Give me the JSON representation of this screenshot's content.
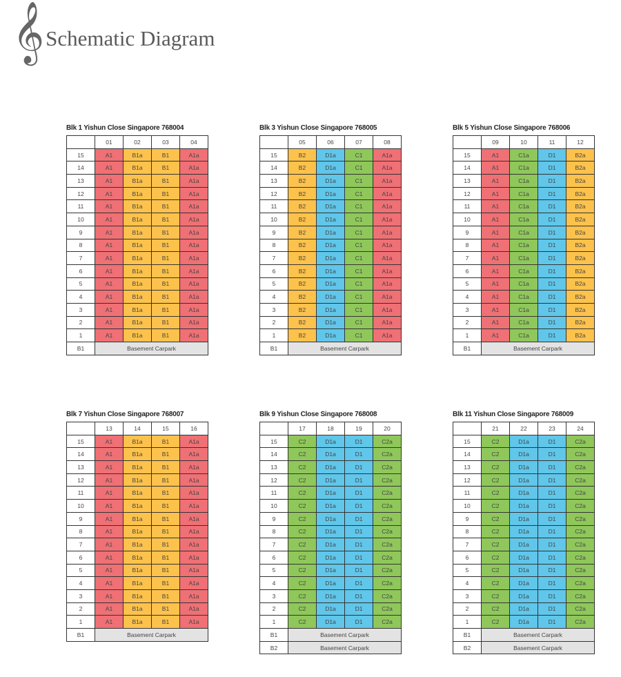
{
  "header": {
    "title": "Schematic Diagram",
    "logo_icon": "treble-clef-icon"
  },
  "colors": {
    "A": "#ef7075",
    "B": "#fcc24c",
    "C": "#8fc75b",
    "D": "#60c6ea",
    "basement": "#e3e3e3"
  },
  "floors": [
    "15",
    "14",
    "13",
    "12",
    "11",
    "10",
    "9",
    "8",
    "7",
    "6",
    "5",
    "4",
    "3",
    "2",
    "1"
  ],
  "blocks": [
    {
      "title": "Blk 1 Yishun Close Singapore 768004",
      "units": [
        "01",
        "02",
        "03",
        "04"
      ],
      "types": [
        "A1",
        "B1a",
        "B1",
        "A1a"
      ],
      "basements": [
        {
          "level": "B1",
          "label": "Basement Carpark"
        }
      ]
    },
    {
      "title": "Blk 3 Yishun Close Singapore 768005",
      "units": [
        "05",
        "06",
        "07",
        "08"
      ],
      "types": [
        "B2",
        "D1a",
        "C1",
        "A1a"
      ],
      "basements": [
        {
          "level": "B1",
          "label": "Basement Carpark"
        }
      ]
    },
    {
      "title": "Blk 5 Yishun Close Singapore 768006",
      "units": [
        "09",
        "10",
        "11",
        "12"
      ],
      "types": [
        "A1",
        "C1a",
        "D1",
        "B2a"
      ],
      "basements": [
        {
          "level": "B1",
          "label": "Basement Carpark"
        }
      ]
    },
    {
      "title": "Blk 7 Yishun Close Singapore 768007",
      "units": [
        "13",
        "14",
        "15",
        "16"
      ],
      "types": [
        "A1",
        "B1a",
        "B1",
        "A1a"
      ],
      "basements": [
        {
          "level": "B1",
          "label": "Basement Carpark"
        }
      ]
    },
    {
      "title": "Blk 9 Yishun Close Singapore 768008",
      "units": [
        "17",
        "18",
        "19",
        "20"
      ],
      "types": [
        "C2",
        "D1a",
        "D1",
        "C2a"
      ],
      "basements": [
        {
          "level": "B1",
          "label": "Basement Carpark"
        },
        {
          "level": "B2",
          "label": "Basement Carpark"
        }
      ]
    },
    {
      "title": "Blk 11 Yishun Close Singapore 768009",
      "units": [
        "21",
        "22",
        "23",
        "24"
      ],
      "types": [
        "C2",
        "D1a",
        "D1",
        "C2a"
      ],
      "basements": [
        {
          "level": "B1",
          "label": "Basement Carpark"
        },
        {
          "level": "B2",
          "label": "Basement Carpark"
        }
      ]
    }
  ]
}
